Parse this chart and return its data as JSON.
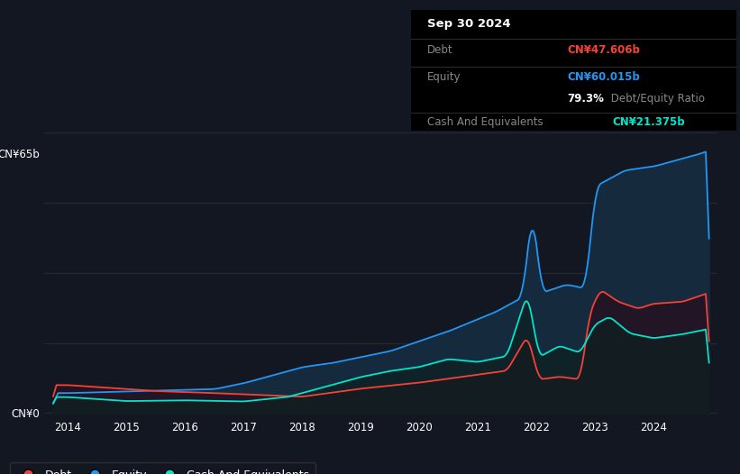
{
  "bg_color": "#131722",
  "plot_bg_color": "#131722",
  "info_bg": "#000000",
  "title": "Sep 30 2024",
  "ylabel_top": "CN¥65b",
  "ylabel_bottom": "CN¥0",
  "equity_color": "#2196f3",
  "debt_color": "#f44336",
  "cash_color": "#00e5cc",
  "equity_fill": "#162a3e",
  "debt_fill": "#251222",
  "cash_fill": "#0d2020",
  "grid_color": "#1e2a38",
  "legend": [
    {
      "label": "Debt",
      "color": "#f44336"
    },
    {
      "label": "Equity",
      "color": "#2196f3"
    },
    {
      "label": "Cash And Equivalents",
      "color": "#00e5cc"
    }
  ],
  "info_title": "Sep 30 2024",
  "info_debt_label": "Debt",
  "info_debt_value": "CN¥47.606b",
  "info_debt_color": "#f44336",
  "info_equity_label": "Equity",
  "info_equity_value": "CN¥60.015b",
  "info_equity_color": "#2196f3",
  "info_ratio": "79.3%",
  "info_ratio_suffix": " Debt/Equity Ratio",
  "info_cash_label": "Cash And Equivalents",
  "info_cash_value": "CN¥21.375b",
  "info_cash_color": "#00e5cc",
  "ylim_max": 70,
  "xlim_min": 2013.6,
  "xlim_max": 2025.1
}
